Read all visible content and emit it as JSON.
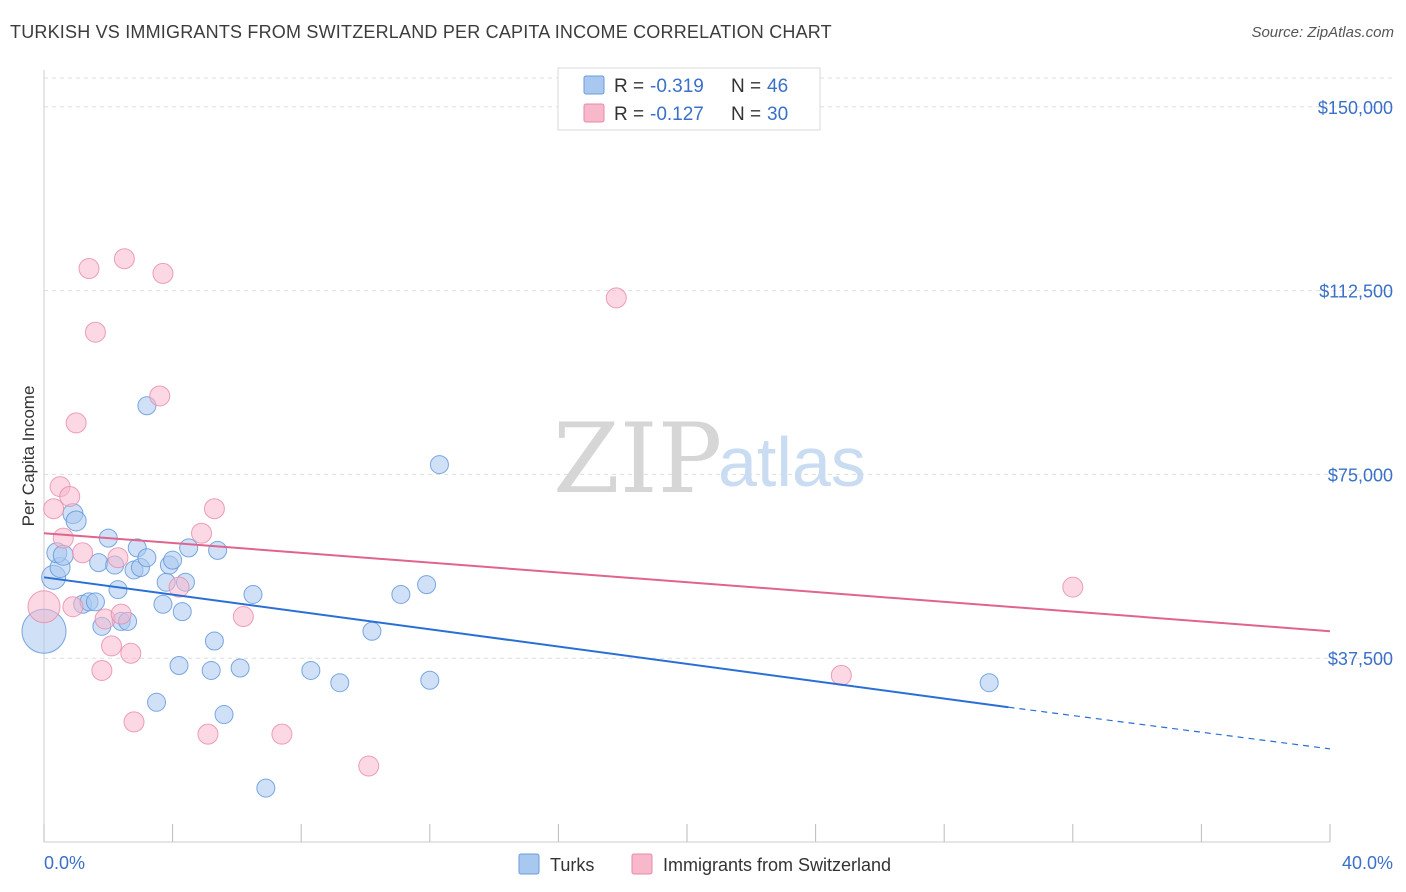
{
  "title": "TURKISH VS IMMIGRANTS FROM SWITZERLAND PER CAPITA INCOME CORRELATION CHART",
  "source": "Source: ZipAtlas.com",
  "watermark": {
    "part1": "ZIP",
    "part2": "atlas"
  },
  "legend_top": {
    "rows": [
      {
        "r_label": "R = ",
        "r_value": "-0.319",
        "n_label": "N = ",
        "n_value": "46",
        "color": "#a9c8f0"
      },
      {
        "r_label": "R = ",
        "r_value": "-0.127",
        "n_label": "N = ",
        "n_value": "30",
        "color": "#f7b8cc"
      }
    ]
  },
  "chart_data": {
    "type": "scatter",
    "title": "TURKISH VS IMMIGRANTS FROM SWITZERLAND PER CAPITA INCOME CORRELATION CHART",
    "xlabel": "",
    "ylabel": "Per Capita Income",
    "xlim": [
      0,
      40
    ],
    "ylim": [
      0,
      157500
    ],
    "x_tick_labels": [
      "0.0%",
      "40.0%"
    ],
    "y_ticks": [
      37500,
      75000,
      112500,
      150000
    ],
    "y_tick_labels": [
      "$37,500",
      "$75,000",
      "$112,500",
      "$150,000"
    ],
    "grid": "horizontal dashed",
    "legend_placement": "top-center",
    "series": [
      {
        "name": "Turks",
        "color": "#a9c8f0",
        "edge": "#5b93d8",
        "trend_color": "#2a6fd6",
        "trend": {
          "x0": 0,
          "y0": 54000,
          "x1": 30,
          "y1": 27500,
          "dash_to_x": 40,
          "dash_to_y": 19000
        },
        "points": [
          [
            0.0,
            43000,
            22
          ],
          [
            0.3,
            54000,
            12
          ],
          [
            0.5,
            56000,
            10
          ],
          [
            0.4,
            59000,
            10
          ],
          [
            0.6,
            58500,
            10
          ],
          [
            0.9,
            67000,
            10
          ],
          [
            1.0,
            65500,
            10
          ],
          [
            1.2,
            48500,
            9
          ],
          [
            1.4,
            49000,
            9
          ],
          [
            1.6,
            49000,
            9
          ],
          [
            1.7,
            57000,
            9
          ],
          [
            1.8,
            44000,
            9
          ],
          [
            2.0,
            62000,
            9
          ],
          [
            2.2,
            56500,
            9
          ],
          [
            2.3,
            51500,
            9
          ],
          [
            2.4,
            45000,
            9
          ],
          [
            2.6,
            45000,
            9
          ],
          [
            2.8,
            55500,
            9
          ],
          [
            3.0,
            56000,
            9
          ],
          [
            2.9,
            60000,
            9
          ],
          [
            3.2,
            58000,
            9
          ],
          [
            3.2,
            89000,
            9
          ],
          [
            3.5,
            28500,
            9
          ],
          [
            3.7,
            48500,
            9
          ],
          [
            3.8,
            53000,
            9
          ],
          [
            3.9,
            56500,
            9
          ],
          [
            4.0,
            57500,
            9
          ],
          [
            4.2,
            36000,
            9
          ],
          [
            4.3,
            47000,
            9
          ],
          [
            4.4,
            53000,
            9
          ],
          [
            4.5,
            60000,
            9
          ],
          [
            5.2,
            35000,
            9
          ],
          [
            5.3,
            41000,
            9
          ],
          [
            5.4,
            59500,
            9
          ],
          [
            5.6,
            26000,
            9
          ],
          [
            6.1,
            35500,
            9
          ],
          [
            6.5,
            50500,
            9
          ],
          [
            6.9,
            11000,
            9
          ],
          [
            8.3,
            35000,
            9
          ],
          [
            9.2,
            32500,
            9
          ],
          [
            10.2,
            43000,
            9
          ],
          [
            11.1,
            50500,
            9
          ],
          [
            11.9,
            52500,
            9
          ],
          [
            12.0,
            33000,
            9
          ],
          [
            12.3,
            77000,
            9
          ],
          [
            29.4,
            32500,
            9
          ]
        ]
      },
      {
        "name": "Immigrants from Switzerland",
        "color": "#f7b8cc",
        "edge": "#e88aa8",
        "trend_color": "#e0648e",
        "trend": {
          "x0": 0,
          "y0": 63000,
          "x1": 40,
          "y1": 43000
        },
        "points": [
          [
            0.0,
            48000,
            16
          ],
          [
            0.3,
            68000,
            10
          ],
          [
            0.5,
            72500,
            10
          ],
          [
            0.6,
            62000,
            10
          ],
          [
            0.8,
            70500,
            10
          ],
          [
            0.9,
            48000,
            10
          ],
          [
            1.0,
            85500,
            10
          ],
          [
            1.2,
            59000,
            10
          ],
          [
            1.4,
            117000,
            10
          ],
          [
            1.6,
            104000,
            10
          ],
          [
            1.8,
            35000,
            10
          ],
          [
            1.9,
            45500,
            10
          ],
          [
            2.1,
            40000,
            10
          ],
          [
            2.3,
            58000,
            10
          ],
          [
            2.4,
            46500,
            10
          ],
          [
            2.5,
            119000,
            10
          ],
          [
            2.7,
            38500,
            10
          ],
          [
            2.8,
            24500,
            10
          ],
          [
            3.6,
            91000,
            10
          ],
          [
            3.7,
            116000,
            10
          ],
          [
            4.2,
            52000,
            10
          ],
          [
            4.9,
            63000,
            10
          ],
          [
            5.1,
            22000,
            10
          ],
          [
            5.3,
            68000,
            10
          ],
          [
            6.2,
            46000,
            10
          ],
          [
            7.4,
            22000,
            10
          ],
          [
            10.1,
            15500,
            10
          ],
          [
            17.8,
            111000,
            10
          ],
          [
            24.8,
            34000,
            10
          ],
          [
            32.0,
            52000,
            10
          ]
        ]
      }
    ]
  }
}
